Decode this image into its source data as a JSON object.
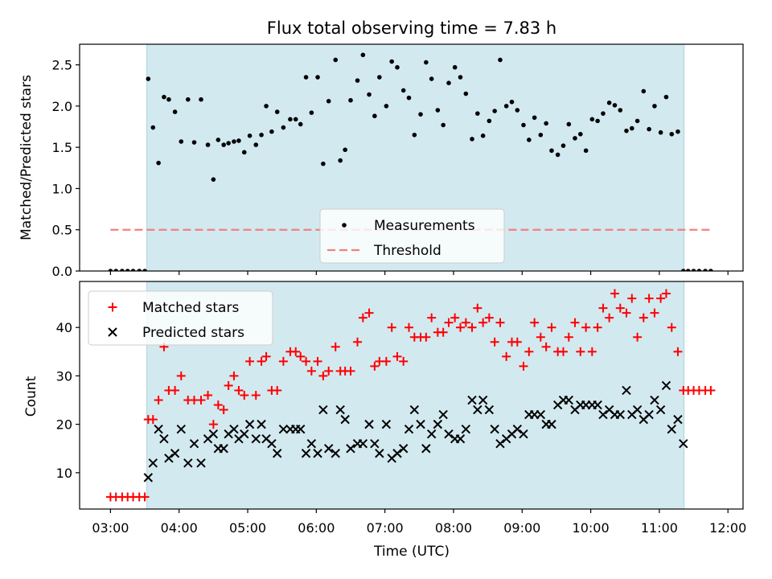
{
  "chart_data": [
    {
      "type": "scatter",
      "title": "Flux total observing time = 7.83 h",
      "ylabel": "Matched/Predicted stars",
      "xlim": [
        2.55,
        12.22
      ],
      "ylim": [
        0,
        2.75
      ],
      "yticks": [
        0.0,
        0.5,
        1.0,
        1.5,
        2.0,
        2.5
      ],
      "ytick_labels": [
        "0.0",
        "0.5",
        "1.0",
        "1.5",
        "2.0",
        "2.5"
      ],
      "shaded_span": {
        "x_start": 3.53,
        "x_end": 11.36,
        "color": "#d3e9f0"
      },
      "legend": {
        "position": "lower-center",
        "entries": [
          "Measurements",
          "Threshold"
        ]
      },
      "series": [
        {
          "name": "Measurements",
          "marker": "dot",
          "color": "#000000",
          "x": [
            3.0,
            3.08,
            3.17,
            3.25,
            3.33,
            3.42,
            3.5,
            3.55,
            3.62,
            3.7,
            3.78,
            3.85,
            3.94,
            4.03,
            4.13,
            4.22,
            4.32,
            4.42,
            4.5,
            4.57,
            4.65,
            4.72,
            4.8,
            4.87,
            4.95,
            5.03,
            5.12,
            5.2,
            5.27,
            5.35,
            5.43,
            5.52,
            5.62,
            5.7,
            5.77,
            5.85,
            5.93,
            6.02,
            6.1,
            6.18,
            6.28,
            6.35,
            6.42,
            6.5,
            6.6,
            6.68,
            6.77,
            6.85,
            6.92,
            7.02,
            7.1,
            7.18,
            7.27,
            7.35,
            7.43,
            7.52,
            7.6,
            7.68,
            7.77,
            7.85,
            7.93,
            8.02,
            8.1,
            8.18,
            8.27,
            8.35,
            8.43,
            8.52,
            8.6,
            8.68,
            8.77,
            8.85,
            8.93,
            9.02,
            9.1,
            9.18,
            9.27,
            9.35,
            9.43,
            9.52,
            9.6,
            9.68,
            9.77,
            9.85,
            9.93,
            10.02,
            10.1,
            10.18,
            10.27,
            10.35,
            10.43,
            10.52,
            10.6,
            10.68,
            10.77,
            10.85,
            10.93,
            11.02,
            11.1,
            11.18,
            11.27,
            11.35,
            11.42,
            11.5,
            11.58,
            11.67,
            11.75
          ],
          "y": [
            0,
            0,
            0,
            0,
            0,
            0,
            0,
            2.33,
            1.74,
            1.31,
            2.11,
            2.08,
            1.93,
            1.57,
            2.08,
            1.56,
            2.08,
            1.53,
            1.11,
            1.59,
            1.53,
            1.55,
            1.57,
            1.58,
            1.44,
            1.64,
            1.53,
            1.65,
            2.0,
            1.69,
            1.93,
            1.74,
            1.84,
            1.84,
            1.78,
            2.35,
            1.92,
            2.35,
            1.3,
            2.06,
            2.56,
            1.34,
            1.47,
            2.07,
            2.31,
            2.62,
            2.14,
            1.88,
            2.35,
            2.0,
            2.54,
            2.47,
            2.19,
            2.1,
            1.65,
            1.9,
            2.53,
            2.33,
            1.95,
            1.77,
            2.28,
            2.47,
            2.35,
            2.15,
            1.6,
            1.91,
            1.64,
            1.82,
            1.94,
            2.56,
            2.0,
            2.05,
            1.95,
            1.77,
            1.59,
            1.86,
            1.65,
            1.79,
            1.46,
            1.41,
            1.52,
            1.78,
            1.61,
            1.66,
            1.46,
            1.84,
            1.82,
            1.91,
            2.04,
            2.01,
            1.95,
            1.7,
            1.73,
            1.82,
            2.18,
            1.72,
            2.0,
            1.68,
            2.11,
            1.66,
            1.69,
            0,
            0,
            0,
            0,
            0,
            0
          ]
        },
        {
          "name": "Threshold",
          "marker": "dashed-line",
          "color": "#f08080",
          "x": [
            3.0,
            11.75
          ],
          "y": [
            0.5,
            0.5
          ]
        }
      ]
    },
    {
      "type": "scatter",
      "xlabel": "Time (UTC)",
      "ylabel": "Count",
      "xlim": [
        2.55,
        12.22
      ],
      "ylim": [
        2.5,
        49.5
      ],
      "xticks": [
        3,
        4,
        5,
        6,
        7,
        8,
        9,
        10,
        11,
        12
      ],
      "xtick_labels": [
        "03:00",
        "04:00",
        "05:00",
        "06:00",
        "07:00",
        "08:00",
        "09:00",
        "10:00",
        "11:00",
        "12:00"
      ],
      "yticks": [
        10,
        20,
        30,
        40
      ],
      "ytick_labels": [
        "10",
        "20",
        "30",
        "40"
      ],
      "shaded_span": {
        "x_start": 3.53,
        "x_end": 11.36,
        "color": "#d3e9f0"
      },
      "legend": {
        "position": "top-left",
        "entries": [
          "Matched stars",
          "Predicted stars"
        ]
      },
      "series": [
        {
          "name": "Matched stars",
          "marker": "plus",
          "color": "#ff0000",
          "x": [
            3.0,
            3.08,
            3.17,
            3.25,
            3.33,
            3.42,
            3.5,
            3.55,
            3.62,
            3.7,
            3.78,
            3.85,
            3.94,
            4.03,
            4.13,
            4.22,
            4.32,
            4.42,
            4.5,
            4.57,
            4.65,
            4.72,
            4.8,
            4.87,
            4.95,
            5.03,
            5.12,
            5.2,
            5.27,
            5.35,
            5.43,
            5.52,
            5.62,
            5.7,
            5.77,
            5.85,
            5.93,
            6.02,
            6.1,
            6.18,
            6.28,
            6.35,
            6.42,
            6.5,
            6.6,
            6.68,
            6.77,
            6.85,
            6.92,
            7.02,
            7.1,
            7.18,
            7.27,
            7.35,
            7.43,
            7.52,
            7.6,
            7.68,
            7.77,
            7.85,
            7.93,
            8.02,
            8.1,
            8.18,
            8.27,
            8.35,
            8.43,
            8.52,
            8.6,
            8.68,
            8.77,
            8.85,
            8.93,
            9.02,
            9.1,
            9.18,
            9.27,
            9.35,
            9.43,
            9.52,
            9.6,
            9.68,
            9.77,
            9.85,
            9.93,
            10.02,
            10.1,
            10.18,
            10.27,
            10.35,
            10.43,
            10.52,
            10.6,
            10.68,
            10.77,
            10.85,
            10.93,
            11.02,
            11.1,
            11.18,
            11.27,
            11.35,
            11.42,
            11.5,
            11.58,
            11.67,
            11.75
          ],
          "y": [
            5,
            5,
            5,
            5,
            5,
            5,
            5,
            21,
            21,
            25,
            36,
            27,
            27,
            30,
            25,
            25,
            25,
            26,
            20,
            24,
            23,
            28,
            30,
            27,
            26,
            33,
            26,
            33,
            34,
            27,
            27,
            33,
            35,
            35,
            34,
            33,
            31,
            33,
            30,
            31,
            36,
            31,
            31,
            31,
            37,
            42,
            43,
            32,
            33,
            33,
            40,
            34,
            33,
            40,
            38,
            38,
            38,
            42,
            39,
            39,
            41,
            42,
            40,
            41,
            40,
            44,
            41,
            42,
            37,
            41,
            34,
            37,
            37,
            32,
            35,
            41,
            38,
            36,
            40,
            35,
            35,
            38,
            41,
            35,
            40,
            35,
            40,
            44,
            42,
            47,
            44,
            43,
            46,
            38,
            42,
            46,
            43,
            46,
            47,
            40,
            35,
            27,
            27,
            27,
            27,
            27,
            27
          ]
        },
        {
          "name": "Predicted stars",
          "marker": "x",
          "color": "#000000",
          "x": [
            3.55,
            3.62,
            3.7,
            3.78,
            3.85,
            3.94,
            4.03,
            4.13,
            4.22,
            4.32,
            4.42,
            4.5,
            4.57,
            4.65,
            4.72,
            4.8,
            4.87,
            4.95,
            5.03,
            5.12,
            5.2,
            5.27,
            5.35,
            5.43,
            5.52,
            5.62,
            5.7,
            5.77,
            5.85,
            5.93,
            6.02,
            6.1,
            6.18,
            6.28,
            6.35,
            6.42,
            6.5,
            6.6,
            6.68,
            6.77,
            6.85,
            6.92,
            7.02,
            7.1,
            7.18,
            7.27,
            7.35,
            7.43,
            7.52,
            7.6,
            7.68,
            7.77,
            7.85,
            7.93,
            8.02,
            8.1,
            8.18,
            8.27,
            8.35,
            8.43,
            8.52,
            8.6,
            8.68,
            8.77,
            8.85,
            8.93,
            9.02,
            9.1,
            9.18,
            9.27,
            9.35,
            9.43,
            9.52,
            9.6,
            9.68,
            9.77,
            9.85,
            9.93,
            10.02,
            10.1,
            10.18,
            10.27,
            10.35,
            10.43,
            10.52,
            10.6,
            10.68,
            10.77,
            10.85,
            10.93,
            11.02,
            11.1,
            11.18,
            11.27,
            11.35
          ],
          "y": [
            9,
            12,
            19,
            17,
            13,
            14,
            19,
            12,
            16,
            12,
            17,
            18,
            15,
            15,
            18,
            19,
            17,
            18,
            20,
            17,
            20,
            17,
            16,
            14,
            19,
            19,
            19,
            19,
            14,
            16,
            14,
            23,
            15,
            14,
            23,
            21,
            15,
            16,
            16,
            20,
            16,
            14,
            20,
            13,
            14,
            15,
            19,
            23,
            20,
            15,
            18,
            20,
            22,
            18,
            17,
            17,
            19,
            25,
            23,
            25,
            23,
            19,
            16,
            17,
            18,
            19,
            18,
            22,
            22,
            22,
            20,
            20,
            24,
            25,
            25,
            23,
            24,
            24,
            24,
            24,
            22,
            23,
            22,
            22,
            27,
            22,
            23,
            21,
            22,
            25,
            23,
            28,
            19,
            21,
            16
          ]
        }
      ]
    }
  ]
}
